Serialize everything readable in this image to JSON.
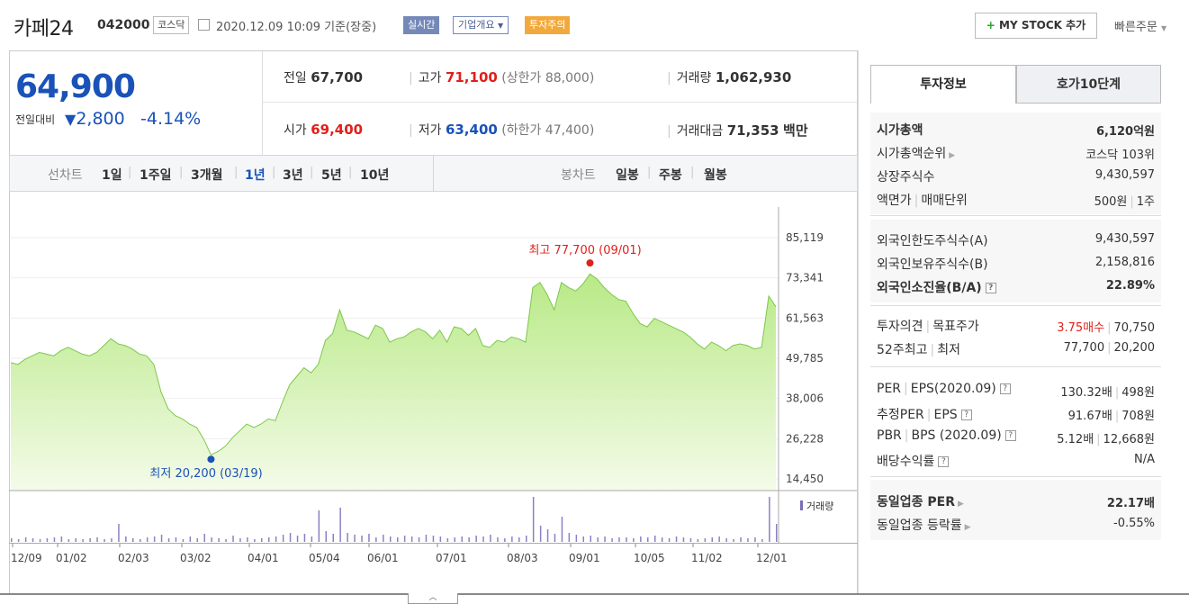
{
  "header": {
    "name": "카페24",
    "code": "042000",
    "market": "코스닥",
    "datetime": "2020.12.09 10:09 기준(장중)",
    "live_badge": "실시간",
    "company_btn": "기업개요",
    "warning_badge": "투자주의",
    "mystock_btn": "MY STOCK 추가",
    "quick_order": "빠른주문"
  },
  "summary": {
    "price": "64,900",
    "change_label": "전일대비",
    "change_value": "2,800",
    "change_pct": "-4.14%",
    "prev_label": "전일",
    "prev": "67,700",
    "high_label": "고가",
    "high": "71,100",
    "upper_limit": "(상한가 88,000)",
    "volume_label": "거래량",
    "volume": "1,062,930",
    "open_label": "시가",
    "open": "69,400",
    "low_label": "저가",
    "low": "63,400",
    "lower_limit": "(하한가 47,400)",
    "amount_label": "거래대금",
    "amount": "71,353",
    "amount_unit": "백만"
  },
  "toolbar": {
    "line_label": "선차트",
    "line_periods": [
      "1일",
      "1주일",
      "3개월",
      "1년",
      "3년",
      "5년",
      "10년"
    ],
    "active_period": "1년",
    "candle_label": "봉차트",
    "candle_periods": [
      "일봉",
      "주봉",
      "월봉"
    ]
  },
  "chart_data": {
    "type": "area",
    "y_ticks": [
      "85,119",
      "73,341",
      "61,563",
      "49,785",
      "38,006",
      "26,228",
      "14,450"
    ],
    "ylim": [
      14450,
      85119
    ],
    "x_ticks": [
      "12/09",
      "01/02",
      "02/03",
      "03/02",
      "04/01",
      "05/04",
      "06/01",
      "07/01",
      "08/03",
      "09/01",
      "10/05",
      "11/02",
      "12/01"
    ],
    "high_annotation": "최고 77,700 (09/01)",
    "low_annotation": "최저 20,200 (03/19)",
    "volume_label": "거래량",
    "series": [
      {
        "values": [
          48500,
          48000,
          49500,
          50500,
          51500,
          51000,
          50500,
          52000,
          53000,
          52000,
          51000,
          50500,
          51500,
          53500,
          55500,
          54000,
          53500,
          52500,
          51000,
          50500,
          48000,
          40000,
          35000,
          33000,
          32000,
          30500,
          29500,
          26000,
          21500,
          22500,
          24000,
          26500,
          28500,
          30500,
          29500,
          30500,
          32000,
          31500,
          37000,
          42000,
          44500,
          47000,
          45500,
          48000,
          55000,
          57000,
          64000,
          58000,
          57500,
          56500,
          55500,
          59500,
          58500,
          54500,
          55500,
          56000,
          57500,
          58500,
          57500,
          55500,
          58000,
          54500,
          59000,
          58500,
          56500,
          58500,
          53500,
          53000,
          55000,
          54500,
          56000,
          55500,
          54500,
          70500,
          72000,
          68500,
          64000,
          72000,
          70500,
          69500,
          71500,
          74500,
          73000,
          70500,
          68500,
          67000,
          66500,
          63000,
          60000,
          59000,
          61500,
          60500,
          59500,
          58500,
          57500,
          56000,
          54000,
          52500,
          54500,
          53500,
          52000,
          53500,
          54000,
          53500,
          52500,
          53000,
          68000,
          64900
        ]
      }
    ],
    "volume": [
      4,
      3,
      5,
      4,
      3,
      4,
      5,
      6,
      3,
      4,
      3,
      4,
      5,
      3,
      4,
      20,
      6,
      4,
      3,
      5,
      6,
      8,
      4,
      5,
      3,
      6,
      4,
      9,
      5,
      4,
      3,
      7,
      4,
      5,
      3,
      4,
      5,
      6,
      8,
      10,
      7,
      9,
      6,
      35,
      12,
      9,
      38,
      10,
      8,
      7,
      9,
      5,
      8,
      6,
      5,
      7,
      6,
      5,
      8,
      7,
      6,
      4,
      5,
      6,
      5,
      7,
      6,
      8,
      5,
      4,
      6,
      5,
      7,
      50,
      18,
      14,
      9,
      28,
      10,
      8,
      6,
      7,
      5,
      6,
      4,
      5,
      5,
      4,
      6,
      5,
      7,
      5,
      4,
      6,
      5,
      4,
      3,
      4,
      5,
      6,
      4,
      3,
      5,
      4,
      5,
      3,
      50,
      20
    ]
  },
  "info_tabs": [
    "투자정보",
    "호가10단계"
  ],
  "info": {
    "s1": [
      {
        "label": "시가총액",
        "value": "6,120억원"
      },
      {
        "label": "시가총액순위",
        "value": "코스닥 103위"
      },
      {
        "label": "상장주식수",
        "value": "9,430,597"
      },
      {
        "label": "액면가",
        "label2": "매매단위",
        "value": "500원",
        "value2": "1주"
      }
    ],
    "s2": [
      {
        "label": "외국인한도주식수(A)",
        "value": "9,430,597"
      },
      {
        "label": "외국인보유주식수(B)",
        "value": "2,158,816"
      },
      {
        "label": "외국인소진율(B/A)",
        "value": "22.89%"
      }
    ],
    "s3": [
      {
        "label": "투자의견",
        "label2": "목표주가",
        "value": "3.75매수",
        "value2": "70,750"
      },
      {
        "label": "52주최고",
        "label2": "최저",
        "value": "77,700",
        "value2": "20,200"
      }
    ],
    "s4": [
      {
        "label": "PER",
        "label2": "EPS(2020.09)",
        "value": "130.32배",
        "value2": "498원"
      },
      {
        "label": "추정PER",
        "label2": "EPS",
        "value": "91.67배",
        "value2": "708원"
      },
      {
        "label": "PBR",
        "label2": "BPS (2020.09)",
        "value": "5.12배",
        "value2": "12,668원"
      },
      {
        "label": "배당수익률",
        "value": "N/A"
      }
    ],
    "s5": [
      {
        "label": "동일업종 PER",
        "value": "22.17배"
      },
      {
        "label": "동일업종 등락률",
        "value": "-0.55%"
      }
    ],
    "help_icon": "?"
  }
}
